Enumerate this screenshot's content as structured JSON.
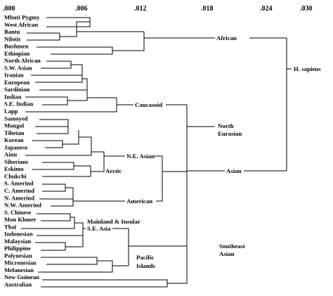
{
  "scale_ticks": [
    ".000",
    ".006",
    ".012",
    ".018",
    ".024",
    ".030"
  ],
  "leaves": [
    "Mbuti Pygmy",
    "West African",
    "Bantu",
    "Nilotic",
    "Bushmen",
    "Ethiopian",
    "North African",
    "S.W. Asian",
    "Iranian",
    "European",
    "Sardinian",
    "Indian",
    "S.E. Indian",
    "Lapp",
    "Samoyed",
    "Mongol",
    "Tibetan",
    "Korean",
    "Japanese",
    "Ainu",
    "Siberians",
    "Eskimo",
    "Chukchi",
    "S. Amerind",
    "C. Amerind",
    "N. Amerind",
    "N.W. Amerind",
    "S. Chinese",
    "Mon Khmer",
    "Thai",
    "Indonesian",
    "Malaysian",
    "Philippine",
    "Polynesian",
    "Micronesian",
    "Melanesian",
    "New Guinean",
    "Australian"
  ],
  "groups": {
    "african": "African",
    "h_sapiens": "H. sapiens",
    "caucasoid": "Caucasoid",
    "north_eurasian_1": "North",
    "north_eurasian_2": "Eurasian",
    "ne_asian": "N.E. Asian",
    "arctic": "Arctic",
    "asian": "Asian",
    "american": "American",
    "mainland_1": "Mainland & Insular",
    "mainland_2": "S.E. Asia",
    "pacific_1": "Pacific",
    "pacific_2": "Islands",
    "se_asian_1": "Southeast",
    "se_asian_2": "Asian"
  }
}
